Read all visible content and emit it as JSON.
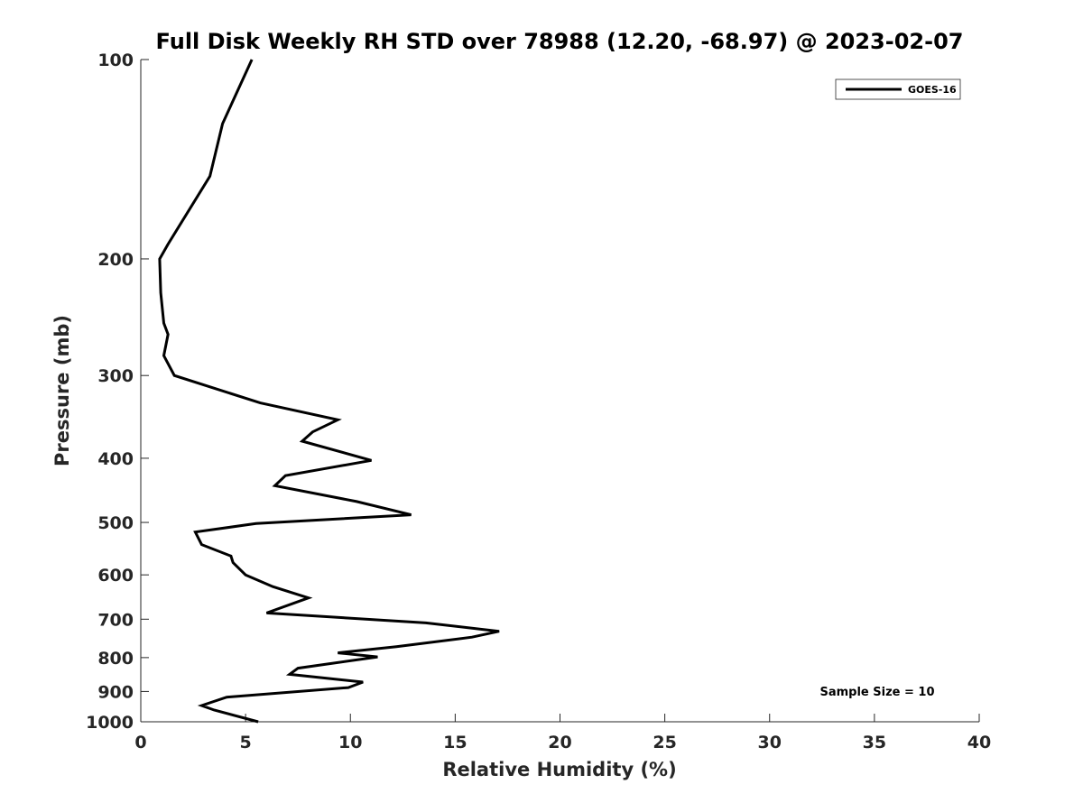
{
  "chart_data": {
    "type": "line",
    "title": "Full Disk Weekly RH STD over 78988 (12.20, -68.97) @ 2023-02-07",
    "xlabel": "Relative Humidity (%)",
    "ylabel": "Pressure (mb)",
    "xlim": [
      0,
      40
    ],
    "ylim": [
      100,
      1000
    ],
    "y_scale": "log",
    "y_reversed": true,
    "x_ticks": [
      0,
      5,
      10,
      15,
      20,
      25,
      30,
      35,
      40
    ],
    "y_ticks": [
      100,
      200,
      300,
      400,
      500,
      600,
      700,
      800,
      900,
      1000
    ],
    "grid": false,
    "legend_position": "top-right",
    "annotation": "Sample Size = 10",
    "series": [
      {
        "name": "GOES-16",
        "color": "#000000",
        "points": [
          [
            5.3,
            100
          ],
          [
            3.9,
            125
          ],
          [
            3.3,
            150
          ],
          [
            1.3,
            190
          ],
          [
            0.9,
            200
          ],
          [
            0.95,
            225
          ],
          [
            1.1,
            250
          ],
          [
            1.3,
            260
          ],
          [
            1.1,
            280
          ],
          [
            1.6,
            300
          ],
          [
            5.7,
            330
          ],
          [
            9.4,
            350
          ],
          [
            8.2,
            365
          ],
          [
            7.7,
            377
          ],
          [
            11.0,
            403
          ],
          [
            6.9,
            425
          ],
          [
            6.4,
            440
          ],
          [
            10.3,
            465
          ],
          [
            12.9,
            487
          ],
          [
            5.5,
            502
          ],
          [
            2.6,
            517
          ],
          [
            2.9,
            540
          ],
          [
            4.3,
            562
          ],
          [
            4.4,
            575
          ],
          [
            5.0,
            600
          ],
          [
            6.3,
            625
          ],
          [
            8.0,
            650
          ],
          [
            6.0,
            685
          ],
          [
            13.6,
            709
          ],
          [
            17.1,
            730
          ],
          [
            15.8,
            745
          ],
          [
            12.2,
            770
          ],
          [
            9.4,
            787
          ],
          [
            11.3,
            798
          ],
          [
            7.5,
            830
          ],
          [
            7.1,
            848
          ],
          [
            10.6,
            871
          ],
          [
            9.9,
            888
          ],
          [
            4.1,
            918
          ],
          [
            2.9,
            945
          ],
          [
            3.5,
            960
          ],
          [
            5.6,
            1000
          ]
        ]
      }
    ]
  }
}
